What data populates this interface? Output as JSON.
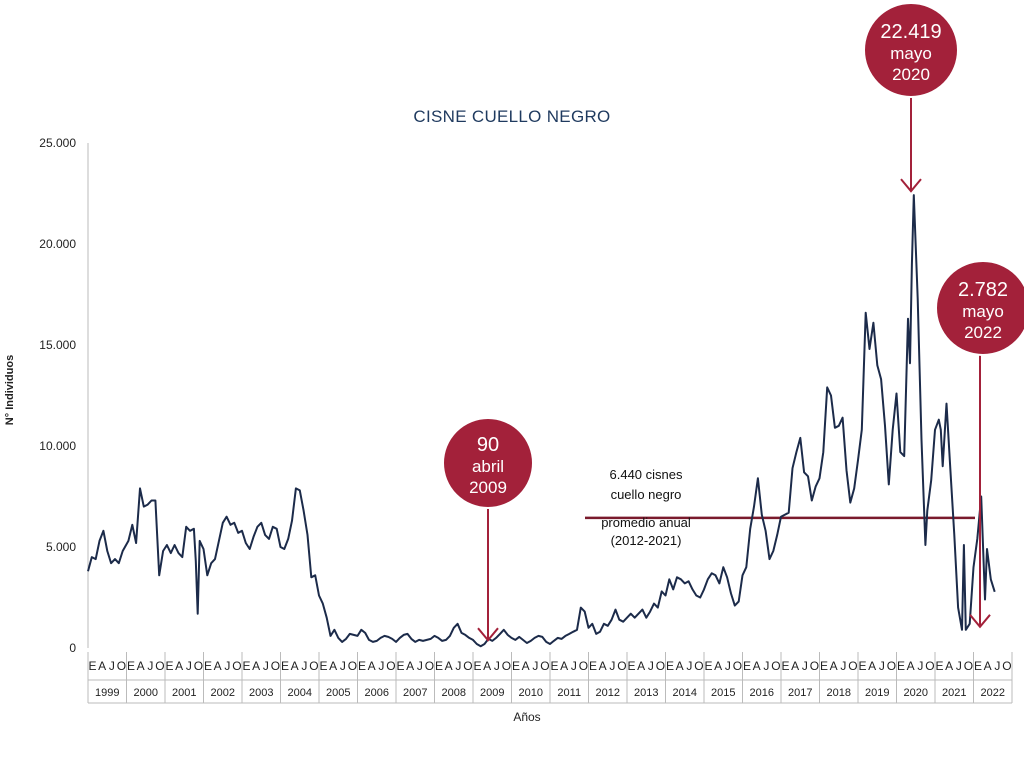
{
  "chart_data": {
    "type": "line",
    "title": "CISNE CUELLO NEGRO",
    "xlabel": "Años",
    "ylabel": "N° Individuos",
    "ylim": [
      0,
      25000
    ],
    "yticks": [
      "0",
      "5.000",
      "10.000",
      "15.000",
      "20.000",
      "25.000"
    ],
    "yticks_values": [
      0,
      5000,
      10000,
      15000,
      20000,
      25000
    ],
    "month_letters": [
      "E",
      "A",
      "J",
      "O"
    ],
    "years": [
      "1999",
      "2000",
      "2001",
      "2002",
      "2003",
      "2004",
      "2005",
      "2006",
      "2007",
      "2008",
      "2009",
      "2010",
      "2011",
      "2012",
      "2013",
      "2014",
      "2015",
      "2016",
      "2017",
      "2018",
      "2019",
      "2020",
      "2021",
      "2022"
    ],
    "series": [
      {
        "color": "#1c2b4a",
        "points": [
          [
            1999.0,
            3800
          ],
          [
            1999.1,
            4500
          ],
          [
            1999.2,
            4400
          ],
          [
            1999.3,
            5300
          ],
          [
            1999.4,
            5800
          ],
          [
            1999.5,
            4800
          ],
          [
            1999.6,
            4200
          ],
          [
            1999.7,
            4400
          ],
          [
            1999.8,
            4200
          ],
          [
            1999.9,
            4800
          ],
          [
            2000.05,
            5300
          ],
          [
            2000.15,
            6100
          ],
          [
            2000.25,
            5200
          ],
          [
            2000.35,
            7900
          ],
          [
            2000.45,
            7000
          ],
          [
            2000.55,
            7100
          ],
          [
            2000.65,
            7300
          ],
          [
            2000.75,
            7300
          ],
          [
            2000.85,
            3600
          ],
          [
            2000.95,
            4800
          ],
          [
            2001.05,
            5100
          ],
          [
            2001.15,
            4700
          ],
          [
            2001.25,
            5100
          ],
          [
            2001.35,
            4700
          ],
          [
            2001.45,
            4500
          ],
          [
            2001.55,
            6000
          ],
          [
            2001.65,
            5800
          ],
          [
            2001.75,
            5900
          ],
          [
            2001.8,
            4300
          ],
          [
            2001.85,
            1700
          ],
          [
            2001.9,
            5300
          ],
          [
            2002.0,
            4900
          ],
          [
            2002.1,
            3600
          ],
          [
            2002.2,
            4200
          ],
          [
            2002.3,
            4400
          ],
          [
            2002.4,
            5300
          ],
          [
            2002.5,
            6200
          ],
          [
            2002.6,
            6500
          ],
          [
            2002.7,
            6100
          ],
          [
            2002.8,
            6200
          ],
          [
            2002.9,
            5700
          ],
          [
            2003.0,
            5800
          ],
          [
            2003.1,
            5200
          ],
          [
            2003.2,
            4900
          ],
          [
            2003.3,
            5500
          ],
          [
            2003.4,
            6000
          ],
          [
            2003.5,
            6200
          ],
          [
            2003.6,
            5600
          ],
          [
            2003.7,
            5400
          ],
          [
            2003.8,
            6000
          ],
          [
            2003.9,
            5900
          ],
          [
            2004.0,
            5000
          ],
          [
            2004.1,
            4900
          ],
          [
            2004.2,
            5400
          ],
          [
            2004.3,
            6300
          ],
          [
            2004.4,
            7900
          ],
          [
            2004.5,
            7800
          ],
          [
            2004.6,
            6800
          ],
          [
            2004.7,
            5600
          ],
          [
            2004.8,
            3500
          ],
          [
            2004.9,
            3600
          ],
          [
            2005.0,
            2600
          ],
          [
            2005.1,
            2200
          ],
          [
            2005.2,
            1500
          ],
          [
            2005.3,
            600
          ],
          [
            2005.4,
            900
          ],
          [
            2005.5,
            500
          ],
          [
            2005.6,
            300
          ],
          [
            2005.7,
            450
          ],
          [
            2005.8,
            700
          ],
          [
            2005.9,
            650
          ],
          [
            2006.0,
            600
          ],
          [
            2006.1,
            900
          ],
          [
            2006.2,
            750
          ],
          [
            2006.3,
            400
          ],
          [
            2006.4,
            300
          ],
          [
            2006.5,
            350
          ],
          [
            2006.6,
            500
          ],
          [
            2006.7,
            600
          ],
          [
            2006.8,
            550
          ],
          [
            2006.9,
            450
          ],
          [
            2007.0,
            300
          ],
          [
            2007.1,
            500
          ],
          [
            2007.2,
            650
          ],
          [
            2007.3,
            700
          ],
          [
            2007.4,
            450
          ],
          [
            2007.5,
            300
          ],
          [
            2007.6,
            400
          ],
          [
            2007.7,
            350
          ],
          [
            2007.8,
            400
          ],
          [
            2007.9,
            450
          ],
          [
            2008.0,
            600
          ],
          [
            2008.1,
            500
          ],
          [
            2008.2,
            350
          ],
          [
            2008.3,
            400
          ],
          [
            2008.4,
            600
          ],
          [
            2008.5,
            1000
          ],
          [
            2008.6,
            1200
          ],
          [
            2008.7,
            750
          ],
          [
            2008.8,
            650
          ],
          [
            2008.9,
            500
          ],
          [
            2009.0,
            400
          ],
          [
            2009.1,
            200
          ],
          [
            2009.2,
            90
          ],
          [
            2009.3,
            200
          ],
          [
            2009.4,
            450
          ],
          [
            2009.5,
            350
          ],
          [
            2009.6,
            500
          ],
          [
            2009.7,
            700
          ],
          [
            2009.8,
            900
          ],
          [
            2009.9,
            650
          ],
          [
            2010.0,
            500
          ],
          [
            2010.1,
            400
          ],
          [
            2010.2,
            550
          ],
          [
            2010.3,
            400
          ],
          [
            2010.4,
            250
          ],
          [
            2010.5,
            350
          ],
          [
            2010.6,
            500
          ],
          [
            2010.7,
            600
          ],
          [
            2010.8,
            550
          ],
          [
            2010.9,
            300
          ],
          [
            2011.0,
            200
          ],
          [
            2011.1,
            350
          ],
          [
            2011.2,
            500
          ],
          [
            2011.3,
            450
          ],
          [
            2011.4,
            600
          ],
          [
            2011.5,
            700
          ],
          [
            2011.6,
            800
          ],
          [
            2011.7,
            900
          ],
          [
            2011.8,
            2000
          ],
          [
            2011.9,
            1800
          ],
          [
            2012.0,
            1000
          ],
          [
            2012.1,
            1200
          ],
          [
            2012.2,
            700
          ],
          [
            2012.3,
            800
          ],
          [
            2012.4,
            1200
          ],
          [
            2012.5,
            1100
          ],
          [
            2012.6,
            1400
          ],
          [
            2012.7,
            1900
          ],
          [
            2012.8,
            1400
          ],
          [
            2012.9,
            1300
          ],
          [
            2013.0,
            1500
          ],
          [
            2013.1,
            1700
          ],
          [
            2013.2,
            1500
          ],
          [
            2013.3,
            1700
          ],
          [
            2013.4,
            1900
          ],
          [
            2013.5,
            1500
          ],
          [
            2013.6,
            1800
          ],
          [
            2013.7,
            2200
          ],
          [
            2013.8,
            2000
          ],
          [
            2013.9,
            2800
          ],
          [
            2014.0,
            2600
          ],
          [
            2014.1,
            3400
          ],
          [
            2014.2,
            2900
          ],
          [
            2014.3,
            3500
          ],
          [
            2014.4,
            3400
          ],
          [
            2014.5,
            3200
          ],
          [
            2014.6,
            3300
          ],
          [
            2014.7,
            2900
          ],
          [
            2014.8,
            2600
          ],
          [
            2014.9,
            2500
          ],
          [
            2015.0,
            2900
          ],
          [
            2015.1,
            3400
          ],
          [
            2015.2,
            3700
          ],
          [
            2015.3,
            3600
          ],
          [
            2015.4,
            3200
          ],
          [
            2015.5,
            4000
          ],
          [
            2015.6,
            3500
          ],
          [
            2015.7,
            2700
          ],
          [
            2015.8,
            2100
          ],
          [
            2015.9,
            2300
          ],
          [
            2016.0,
            3600
          ],
          [
            2016.1,
            4000
          ],
          [
            2016.2,
            5900
          ],
          [
            2016.3,
            7000
          ],
          [
            2016.4,
            8400
          ],
          [
            2016.5,
            6600
          ],
          [
            2016.6,
            5800
          ],
          [
            2016.7,
            4400
          ],
          [
            2016.8,
            4800
          ],
          [
            2016.9,
            5600
          ],
          [
            2017.0,
            6500
          ],
          [
            2017.1,
            6600
          ],
          [
            2017.2,
            6700
          ],
          [
            2017.3,
            8900
          ],
          [
            2017.4,
            9700
          ],
          [
            2017.5,
            10400
          ],
          [
            2017.6,
            8700
          ],
          [
            2017.7,
            8500
          ],
          [
            2017.8,
            7300
          ],
          [
            2017.9,
            8000
          ],
          [
            2018.0,
            8400
          ],
          [
            2018.1,
            9700
          ],
          [
            2018.2,
            12900
          ],
          [
            2018.3,
            12500
          ],
          [
            2018.4,
            10900
          ],
          [
            2018.5,
            11000
          ],
          [
            2018.6,
            11400
          ],
          [
            2018.7,
            8800
          ],
          [
            2018.8,
            7200
          ],
          [
            2018.9,
            7900
          ],
          [
            2019.0,
            9300
          ],
          [
            2019.1,
            10800
          ],
          [
            2019.2,
            16600
          ],
          [
            2019.3,
            14800
          ],
          [
            2019.4,
            16100
          ],
          [
            2019.5,
            14000
          ],
          [
            2019.6,
            13300
          ],
          [
            2019.7,
            11000
          ],
          [
            2019.8,
            8100
          ],
          [
            2019.9,
            10800
          ],
          [
            2020.0,
            12600
          ],
          [
            2020.1,
            9700
          ],
          [
            2020.2,
            9500
          ],
          [
            2020.3,
            16300
          ],
          [
            2020.35,
            14100
          ],
          [
            2020.4,
            19000
          ],
          [
            2020.45,
            22419
          ],
          [
            2020.55,
            17300
          ],
          [
            2020.65,
            10300
          ],
          [
            2020.75,
            5100
          ],
          [
            2020.8,
            6800
          ],
          [
            2020.9,
            8300
          ],
          [
            2021.0,
            10800
          ],
          [
            2021.1,
            11300
          ],
          [
            2021.15,
            10800
          ],
          [
            2021.2,
            9000
          ],
          [
            2021.3,
            12100
          ],
          [
            2021.4,
            8800
          ],
          [
            2021.5,
            5600
          ],
          [
            2021.6,
            2000
          ],
          [
            2021.7,
            900
          ],
          [
            2021.75,
            5100
          ],
          [
            2021.8,
            900
          ],
          [
            2021.9,
            1200
          ],
          [
            2022.0,
            4000
          ],
          [
            2022.1,
            5400
          ],
          [
            2022.2,
            7500
          ],
          [
            2022.3,
            2400
          ],
          [
            2022.35,
            4900
          ],
          [
            2022.45,
            3400
          ],
          [
            2022.55,
            2782
          ]
        ]
      }
    ],
    "average_line": {
      "value": 6440,
      "label_lines": [
        "6.440 cisnes",
        "cuello negro",
        "promedio anual",
        "(2012-2021)"
      ]
    },
    "annotations": [
      {
        "id": "min",
        "lines": [
          "90",
          "abril",
          "2009"
        ],
        "target_x": 2009.2,
        "target_y": 90,
        "color": "#a3213a"
      },
      {
        "id": "peak",
        "lines": [
          "22.419",
          "mayo",
          "2020"
        ],
        "target_x": 2020.45,
        "target_y": 22419,
        "color": "#a3213a"
      },
      {
        "id": "last",
        "lines": [
          "2.782",
          "mayo",
          "2022"
        ],
        "target_x": 2022.55,
        "target_y": 2782,
        "color": "#a3213a"
      }
    ]
  }
}
